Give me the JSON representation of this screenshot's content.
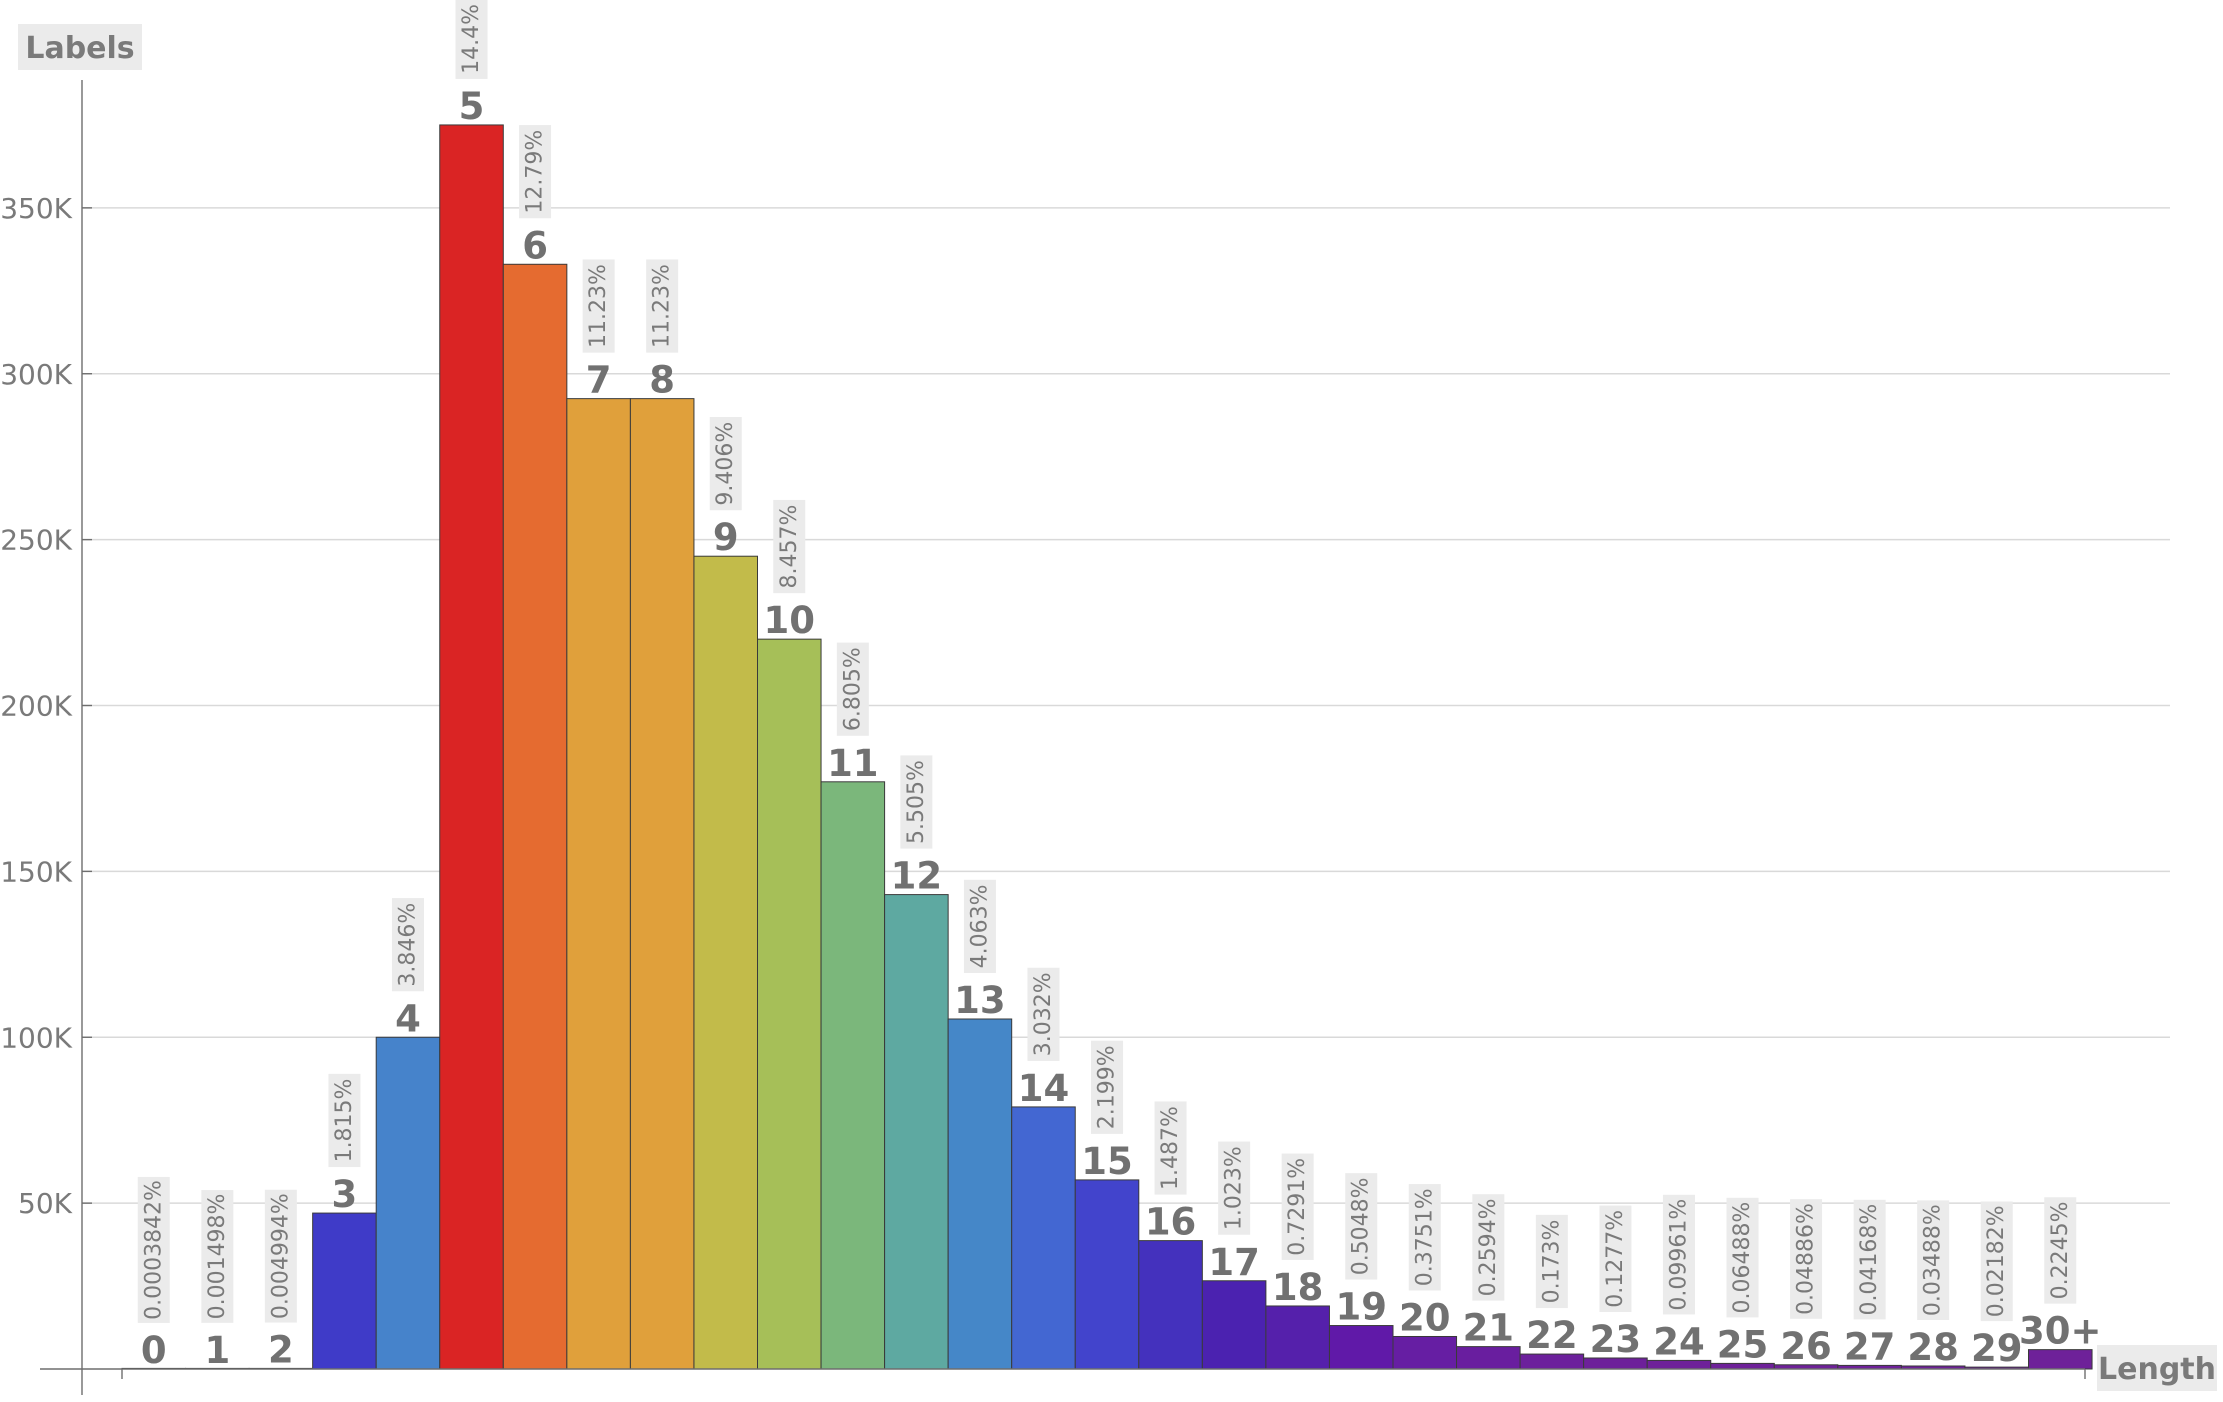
{
  "chart_data": {
    "type": "bar",
    "xlabel": "Length",
    "ylabel": "Labels",
    "ylim": [
      0,
      400000
    ],
    "yticks": [
      50000,
      100000,
      150000,
      200000,
      250000,
      300000,
      350000
    ],
    "ytick_labels": [
      "50K",
      "100K",
      "150K",
      "200K",
      "250K",
      "300K",
      "350K"
    ],
    "grid": "horizontal",
    "categories": [
      "0",
      "1",
      "2",
      "3",
      "4",
      "5",
      "6",
      "7",
      "8",
      "9",
      "10",
      "11",
      "12",
      "13",
      "14",
      "15",
      "16",
      "17",
      "18",
      "19",
      "20",
      "21",
      "22",
      "23",
      "24",
      "25",
      "26",
      "27",
      "28",
      "29",
      "30+"
    ],
    "values": [
      10,
      40,
      130,
      47000,
      100000,
      375000,
      333000,
      292500,
      292500,
      245000,
      220000,
      177000,
      143000,
      105500,
      79000,
      57000,
      38700,
      26600,
      19000,
      13100,
      9800,
      6750,
      4500,
      3320,
      2590,
      1690,
      1270,
      1085,
      908,
      568,
      5840
    ],
    "percent_labels": [
      "0.0003842%",
      "0.001498%",
      "0.004994%",
      "1.815%",
      "3.846%",
      "14.4%",
      "12.79%",
      "11.23%",
      "11.23%",
      "9.406%",
      "8.457%",
      "6.805%",
      "5.505%",
      "4.063%",
      "3.032%",
      "2.199%",
      "1.487%",
      "1.023%",
      "0.7291%",
      "0.5048%",
      "0.3751%",
      "0.2594%",
      "0.173%",
      "0.1277%",
      "0.09961%",
      "0.06488%",
      "0.04886%",
      "0.04168%",
      "0.03488%",
      "0.02182%",
      "0.2245%"
    ],
    "colors": [
      "#3f3bc8",
      "#3f3bc8",
      "#3f3bc8",
      "#3f3bc8",
      "#4683cb",
      "#da2424",
      "#e56b30",
      "#e0a03b",
      "#e0a03b",
      "#c2bb4a",
      "#a6bf58",
      "#7bb77b",
      "#5ea9a1",
      "#4587c8",
      "#4367d2",
      "#4244cc",
      "#4431bd",
      "#4b22b0",
      "#5520ab",
      "#6019a8",
      "#661ea3",
      "#691e9f",
      "#6c209c",
      "#6d209a",
      "#6e2199",
      "#6e2199",
      "#6e2199",
      "#6e2199",
      "#6e2199",
      "#6e2199",
      "#6e2199"
    ]
  }
}
